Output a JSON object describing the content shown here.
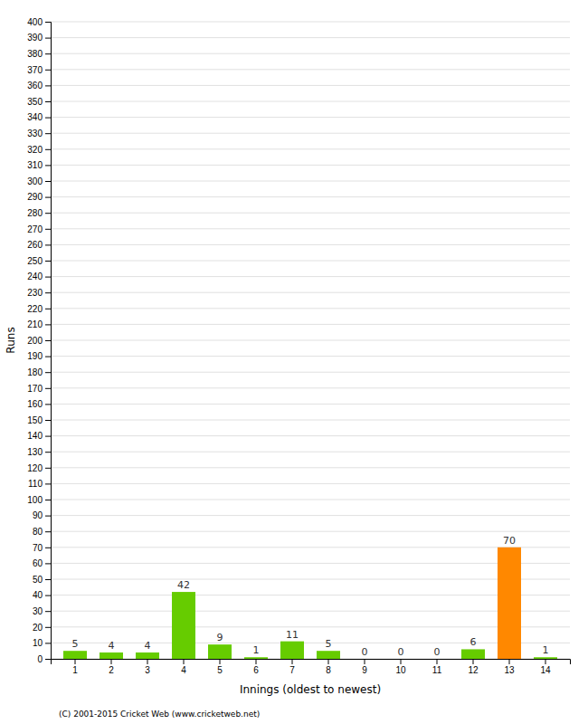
{
  "chart_data": {
    "type": "bar",
    "categories": [
      "1",
      "2",
      "3",
      "4",
      "5",
      "6",
      "7",
      "8",
      "9",
      "10",
      "11",
      "12",
      "13",
      "14"
    ],
    "values": [
      5,
      4,
      4,
      42,
      9,
      1,
      11,
      5,
      0,
      0,
      0,
      6,
      70,
      1
    ],
    "colors": [
      "#66cc00",
      "#66cc00",
      "#66cc00",
      "#66cc00",
      "#66cc00",
      "#66cc00",
      "#66cc00",
      "#66cc00",
      "#66cc00",
      "#66cc00",
      "#66cc00",
      "#66cc00",
      "#ff8800",
      "#66cc00"
    ],
    "xlabel": "Innings (oldest to newest)",
    "ylabel": "Runs",
    "ylim": [
      0,
      400
    ],
    "yticks": [
      0,
      10,
      20,
      30,
      40,
      50,
      60,
      70,
      80,
      90,
      100,
      110,
      120,
      130,
      140,
      150,
      160,
      170,
      180,
      190,
      200,
      210,
      220,
      230,
      240,
      250,
      260,
      270,
      280,
      290,
      300,
      310,
      320,
      330,
      340,
      350,
      360,
      370,
      380,
      390,
      400
    ],
    "grid": true,
    "data_labels": true,
    "annotations": [
      "(C) 2001-2015 Cricket Web (www.cricketweb.net)"
    ]
  }
}
